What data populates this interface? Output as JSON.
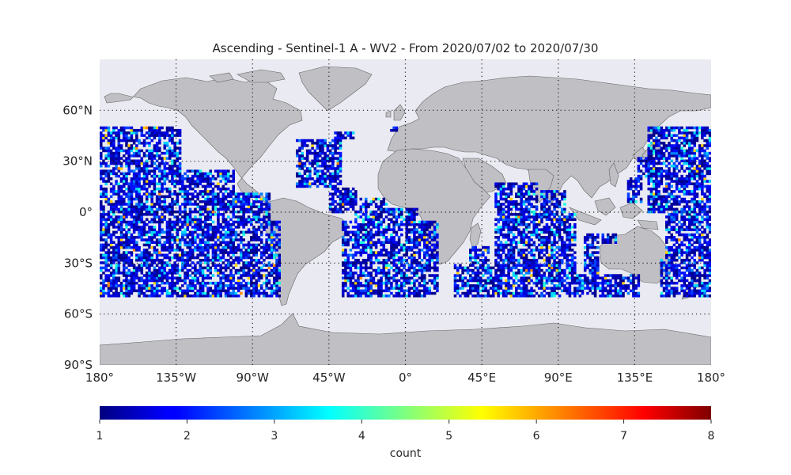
{
  "title": "Ascending - Sentinel-1 A - WV2 - From 2020/07/02 to 2020/07/30",
  "map": {
    "projection": "equirectangular",
    "lon_range": [
      -180,
      180
    ],
    "lat_range": [
      -90,
      90
    ],
    "grid": "dotted",
    "background_color": "#eaeaf2",
    "land_color": "#bfbfc4",
    "coastline_color": "#666666",
    "x_ticks": [
      {
        "value": -180,
        "label": "180°"
      },
      {
        "value": -135,
        "label": "135°W"
      },
      {
        "value": -90,
        "label": "90°W"
      },
      {
        "value": -45,
        "label": "45°W"
      },
      {
        "value": 0,
        "label": "0°"
      },
      {
        "value": 45,
        "label": "45°E"
      },
      {
        "value": 90,
        "label": "90°E"
      },
      {
        "value": 135,
        "label": "135°E"
      },
      {
        "value": 180,
        "label": "180°"
      }
    ],
    "y_ticks": [
      {
        "value": 60,
        "label": "60°N"
      },
      {
        "value": 30,
        "label": "30°N"
      },
      {
        "value": 0,
        "label": "0°"
      },
      {
        "value": -30,
        "label": "30°S"
      },
      {
        "value": -60,
        "label": "60°S"
      },
      {
        "value": -90,
        "label": "90°S"
      }
    ],
    "data_lat_range": [
      -50,
      50
    ],
    "cell_size_deg": 1.5,
    "ocean_track_regions": [
      {
        "lon": [
          -180,
          -132
        ],
        "lat": [
          -50,
          50
        ]
      },
      {
        "lon": [
          -132,
          -100
        ],
        "lat": [
          -50,
          25
        ]
      },
      {
        "lon": [
          -100,
          -80
        ],
        "lat": [
          -50,
          12
        ]
      },
      {
        "lon": [
          -80,
          -74
        ],
        "lat": [
          -50,
          -5
        ]
      },
      {
        "lon": [
          -65,
          -38
        ],
        "lat": [
          15,
          43
        ]
      },
      {
        "lon": [
          -45,
          -28
        ],
        "lat": [
          0,
          15
        ]
      },
      {
        "lon": [
          -38,
          20
        ],
        "lat": [
          -50,
          -5
        ]
      },
      {
        "lon": [
          -30,
          8
        ],
        "lat": [
          -5,
          2
        ]
      },
      {
        "lon": [
          -15,
          9
        ],
        "lat": [
          2,
          3
        ]
      },
      {
        "lon": [
          -27,
          -10
        ],
        "lat": [
          3,
          8
        ]
      },
      {
        "lon": [
          -10,
          -5
        ],
        "lat": [
          48,
          50
        ]
      },
      {
        "lon": [
          -42,
          -30
        ],
        "lat": [
          43,
          47
        ]
      },
      {
        "lon": [
          28,
          60
        ],
        "lat": [
          -50,
          -30
        ]
      },
      {
        "lon": [
          38,
          50
        ],
        "lat": [
          -30,
          -20
        ]
      },
      {
        "lon": [
          52,
          78
        ],
        "lat": [
          -50,
          18
        ]
      },
      {
        "lon": [
          78,
          100
        ],
        "lat": [
          -50,
          0
        ]
      },
      {
        "lon": [
          80,
          95
        ],
        "lat": [
          0,
          13
        ]
      },
      {
        "lon": [
          100,
          138
        ],
        "lat": [
          -50,
          -36
        ]
      },
      {
        "lon": [
          105,
          114
        ],
        "lat": [
          -36,
          -13
        ]
      },
      {
        "lon": [
          115,
          125
        ],
        "lat": [
          -18,
          -13
        ]
      },
      {
        "lon": [
          130,
          140
        ],
        "lat": [
          5,
          20
        ]
      },
      {
        "lon": [
          136,
          142
        ],
        "lat": [
          20,
          33
        ]
      },
      {
        "lon": [
          150,
          180
        ],
        "lat": [
          -50,
          -28
        ]
      },
      {
        "lon": [
          153,
          180
        ],
        "lat": [
          -28,
          0
        ]
      },
      {
        "lon": [
          142,
          180
        ],
        "lat": [
          0,
          50
        ]
      }
    ]
  },
  "colorbar": {
    "label": "count",
    "min": 1,
    "max": 8,
    "ticks": [
      "1",
      "2",
      "3",
      "4",
      "5",
      "6",
      "7",
      "8"
    ],
    "colormap": "jet"
  }
}
